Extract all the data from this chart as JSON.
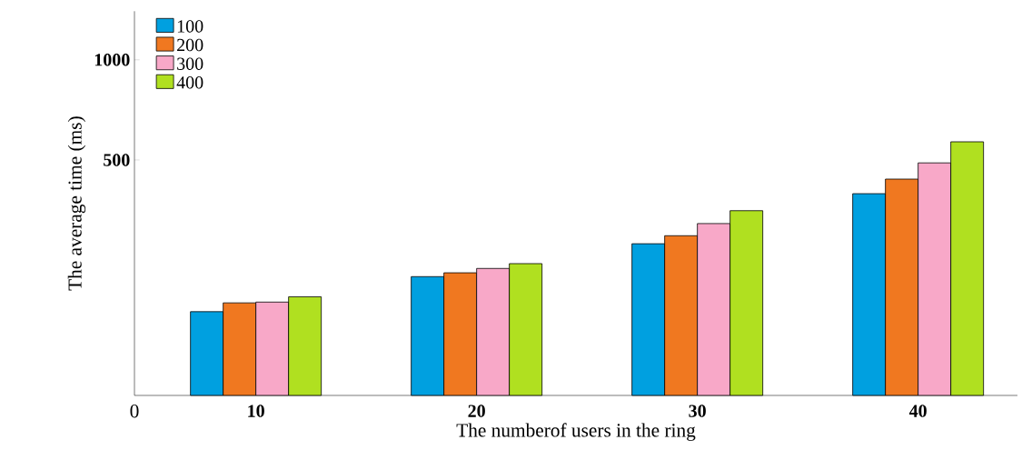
{
  "chart_data": {
    "type": "bar",
    "xlabel": "The numberof users in the ring",
    "ylabel": "The average time (ms)",
    "categories": [
      "10",
      "20",
      "30",
      "40"
    ],
    "series": [
      {
        "name": "100",
        "color": "#00a0e0",
        "values": [
          175,
          223,
          280,
          396
        ]
      },
      {
        "name": "200",
        "color": "#f07820",
        "values": [
          186,
          229,
          296,
          438
        ]
      },
      {
        "name": "300",
        "color": "#f8a8c8",
        "values": [
          187,
          236,
          322,
          490
        ]
      },
      {
        "name": "400",
        "color": "#b0e020",
        "values": [
          194,
          244,
          352,
          567
        ]
      }
    ],
    "log": true,
    "ylim": [
      98,
      1400
    ],
    "yticks": [
      500,
      1000
    ],
    "legend": "top left",
    "grid": false,
    "annotations": [
      "0"
    ]
  }
}
